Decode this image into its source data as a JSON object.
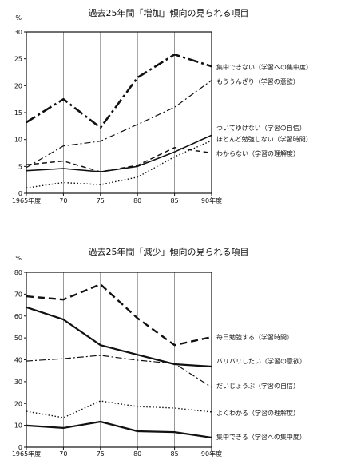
{
  "chart_data": [
    {
      "type": "line",
      "title": "過去25年間「増加」傾向の見られる項目",
      "xlabel": "",
      "ylabel": "%",
      "x": [
        "1965年度",
        "70",
        "75",
        "80",
        "85",
        "90年度"
      ],
      "ylim": [
        0,
        30
      ],
      "yticks": [
        0,
        5,
        10,
        15,
        20,
        25,
        30
      ],
      "grid": "vertical",
      "legend": "labels right of line ends",
      "line_color": "#111111",
      "series": [
        {
          "name": "集中できない（学習への集中度）",
          "style": "dash-dot-heavy",
          "values": [
            13.2,
            17.5,
            12.2,
            21.5,
            25.8,
            23.6
          ]
        },
        {
          "name": "もううんざり（学習の意欲）",
          "style": "dash-dot",
          "values": [
            4.8,
            8.8,
            9.7,
            12.8,
            16.0,
            21.0
          ]
        },
        {
          "name": "ついてゆけない（学習の自信）",
          "style": "solid",
          "values": [
            4.2,
            4.6,
            4.0,
            5.0,
            7.7,
            10.8
          ]
        },
        {
          "name": "ほとんど勉強しない（学習時間）",
          "style": "dashed",
          "values": [
            5.3,
            6.0,
            4.0,
            5.2,
            8.5,
            7.5
          ]
        },
        {
          "name": "わからない（学習の理解度）",
          "style": "dotted",
          "values": [
            1.0,
            2.0,
            1.6,
            3.0,
            6.8,
            9.8
          ]
        }
      ]
    },
    {
      "type": "line",
      "title": "過去25年間「減少」傾向の見られる項目",
      "xlabel": "",
      "ylabel": "%",
      "x": [
        "1965年度",
        "70",
        "75",
        "80",
        "85",
        "90年度"
      ],
      "ylim": [
        0,
        80
      ],
      "yticks": [
        0,
        10,
        20,
        30,
        40,
        50,
        60,
        70,
        80
      ],
      "grid": "vertical",
      "legend": "labels right of line ends",
      "line_color": "#111111",
      "series": [
        {
          "name": "毎日勉強する（学習時間）",
          "style": "dashed-heavy",
          "values": [
            69.0,
            67.5,
            74.5,
            59.0,
            46.7,
            50.4
          ]
        },
        {
          "name": "バリバリしたい（学習の意欲）",
          "style": "solid-heavy",
          "values": [
            64.0,
            58.4,
            46.7,
            42.3,
            38.0,
            36.9
          ]
        },
        {
          "name": "だいじょうぶ（学習の自信）",
          "style": "dash-dot",
          "values": [
            39.4,
            40.5,
            42.0,
            39.8,
            38.3,
            27.4
          ]
        },
        {
          "name": "よくわかる（学習の理解度）",
          "style": "dotted",
          "values": [
            16.4,
            13.5,
            21.2,
            18.6,
            17.9,
            16.1
          ]
        },
        {
          "name": "集中できる（学習への集中度）",
          "style": "solid-heavy",
          "values": [
            9.9,
            8.8,
            11.7,
            7.3,
            6.9,
            4.4
          ]
        }
      ]
    }
  ]
}
